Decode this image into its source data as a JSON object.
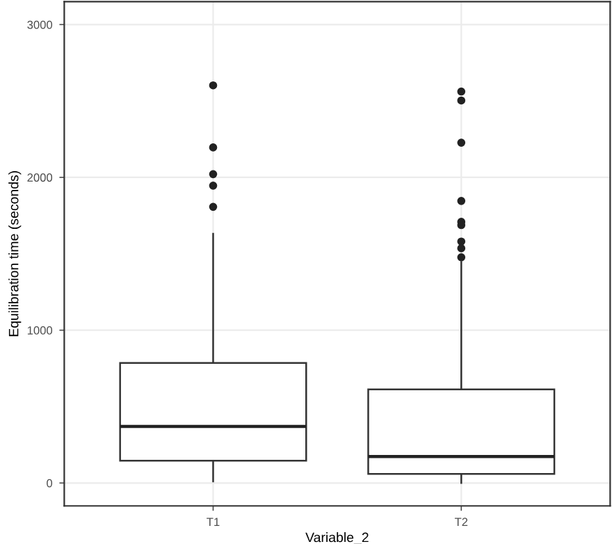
{
  "chart_data": {
    "type": "box",
    "xlabel": "Variable_2",
    "ylabel": "Equilibration time (seconds)",
    "categories": [
      "T1",
      "T2"
    ],
    "boxes": [
      {
        "low": 10,
        "q1": 146,
        "median": 370,
        "q3": 786,
        "high": 1631,
        "outliers": [
          2602,
          2196,
          2021,
          1946,
          1807
        ]
      },
      {
        "low": 0,
        "q1": 60,
        "median": 173,
        "q3": 613,
        "high": 1446,
        "outliers": [
          2562,
          2503,
          2227,
          1846,
          1709,
          1688,
          1580,
          1536,
          1477
        ]
      }
    ],
    "ylim": [
      -150,
      3150
    ],
    "yticks": [
      0,
      1000,
      2000,
      3000
    ],
    "grid": true
  }
}
